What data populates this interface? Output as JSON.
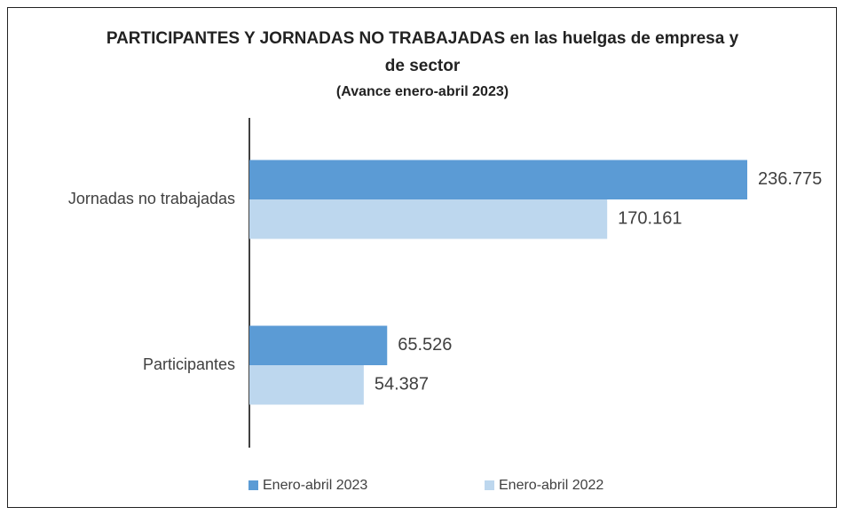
{
  "chart_data": {
    "type": "bar",
    "orientation": "horizontal",
    "title": "PARTICIPANTES  Y JORNADAS NO TRABAJADAS  en las huelgas de empresa y de sector",
    "subtitle": "(Avance enero-abril 2023)",
    "categories": [
      "Jornadas no trabajadas",
      "Participantes"
    ],
    "series": [
      {
        "name": "Enero-abril 2023",
        "color": "#5b9bd5",
        "values": [
          236775,
          65526
        ],
        "value_labels": [
          "236.775",
          "65.526"
        ]
      },
      {
        "name": "Enero-abril 2022",
        "color": "#bdd7ee",
        "values": [
          170161,
          54387
        ],
        "value_labels": [
          "170.161",
          "54.387"
        ]
      }
    ],
    "legend": "bottom"
  }
}
